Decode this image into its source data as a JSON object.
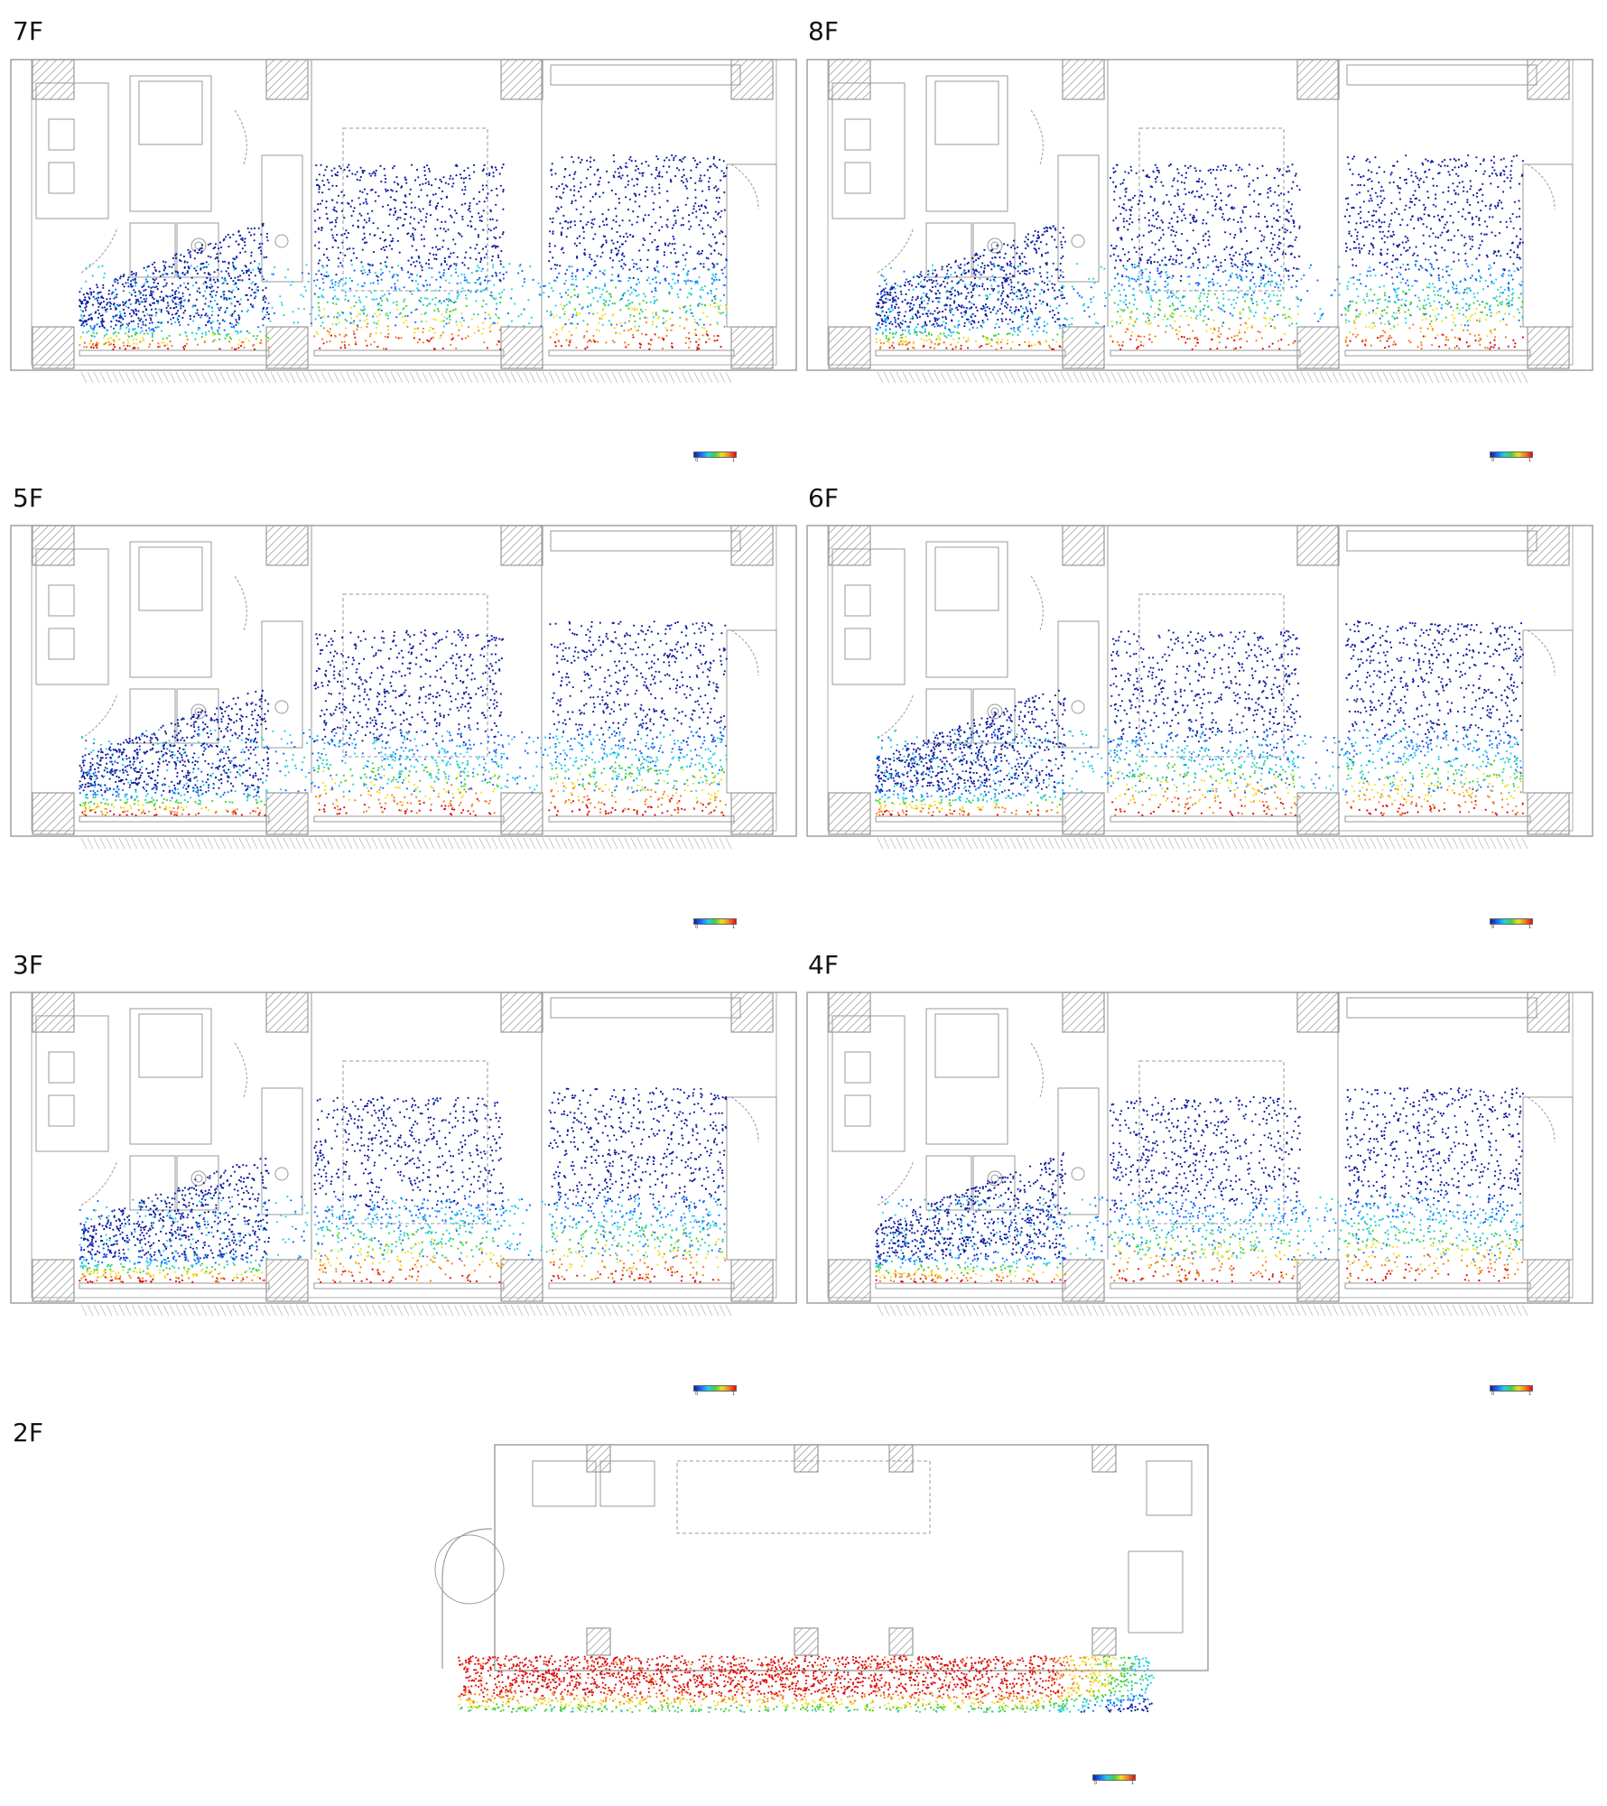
{
  "floors": [
    {
      "id": "7F",
      "label": "7F"
    },
    {
      "id": "8F",
      "label": "8F"
    },
    {
      "id": "5F",
      "label": "5F"
    },
    {
      "id": "6F",
      "label": "6F"
    },
    {
      "id": "3F",
      "label": "3F"
    },
    {
      "id": "4F",
      "label": "4F"
    },
    {
      "id": "2F",
      "label": "2F"
    }
  ],
  "legend": {
    "min": "0",
    "max": "1",
    "min_2f": "0",
    "max_2f": "1"
  },
  "colors": {
    "plan_line": "#9a9a9a",
    "scale": [
      "#1020a0",
      "#1a6bff",
      "#22d0e6",
      "#40d040",
      "#f0e020",
      "#f08020",
      "#e01010"
    ]
  }
}
